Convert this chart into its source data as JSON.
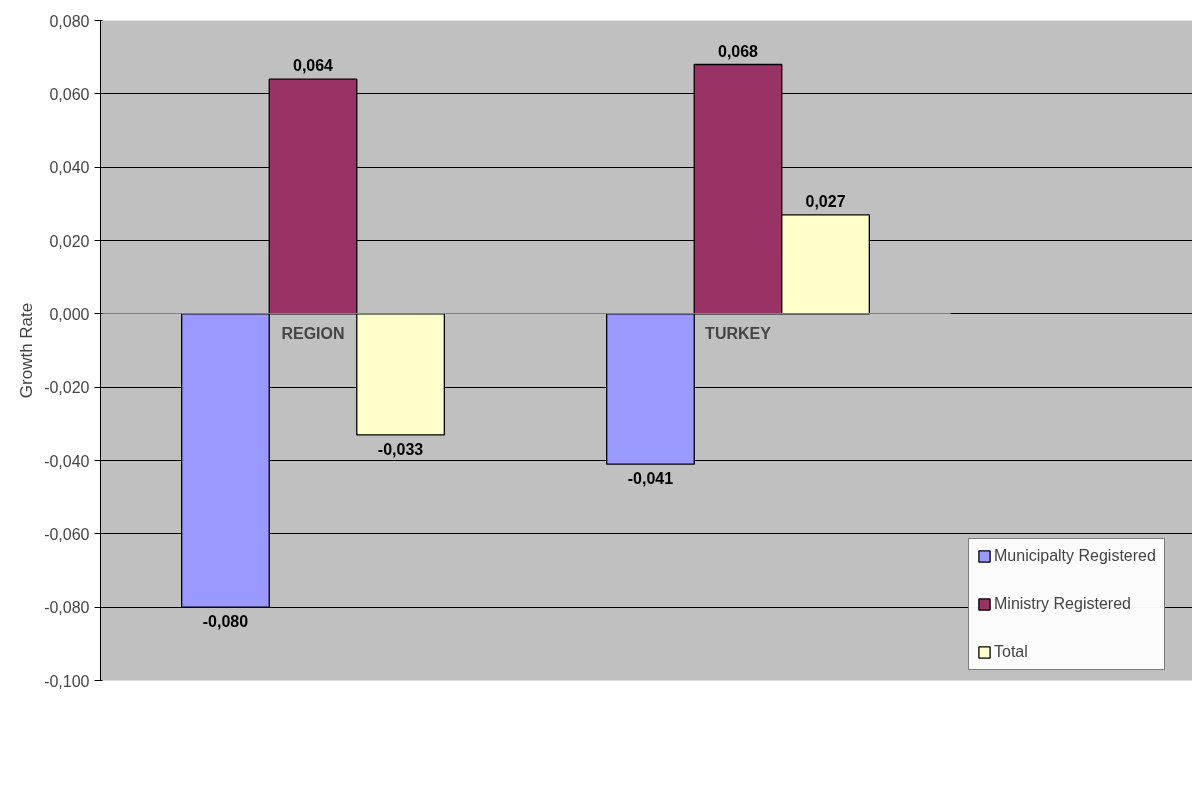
{
  "chart_data": {
    "type": "bar",
    "ylabel": "Growth Rate",
    "categories": [
      "REGION",
      "TURKEY"
    ],
    "series": [
      {
        "name": "Municipalty Registered",
        "color": "#9999ff",
        "values": [
          -0.08,
          -0.041
        ],
        "value_labels": [
          "-0,080",
          "-0,041"
        ]
      },
      {
        "name": "Ministry Registered",
        "color": "#993366",
        "values": [
          0.064,
          0.068
        ],
        "value_labels": [
          "0,064",
          "0,068"
        ]
      },
      {
        "name": "Total",
        "color": "#ffffcc",
        "values": [
          -0.033,
          0.027
        ],
        "value_labels": [
          "-0,033",
          "0,027"
        ]
      }
    ],
    "ylim": [
      -0.1,
      0.08
    ],
    "yticks": [
      {
        "value": -0.1,
        "label": "-0,100"
      },
      {
        "value": -0.08,
        "label": "-0,080"
      },
      {
        "value": -0.06,
        "label": "-0,060"
      },
      {
        "value": -0.04,
        "label": "-0,040"
      },
      {
        "value": -0.02,
        "label": "-0,020"
      },
      {
        "value": 0,
        "label": "0,000"
      },
      {
        "value": 0.02,
        "label": "0,020"
      },
      {
        "value": 0.04,
        "label": "0,040"
      },
      {
        "value": 0.06,
        "label": "0,060"
      },
      {
        "value": 0.08,
        "label": "0,080"
      }
    ],
    "grid": "y",
    "legend": "right"
  }
}
